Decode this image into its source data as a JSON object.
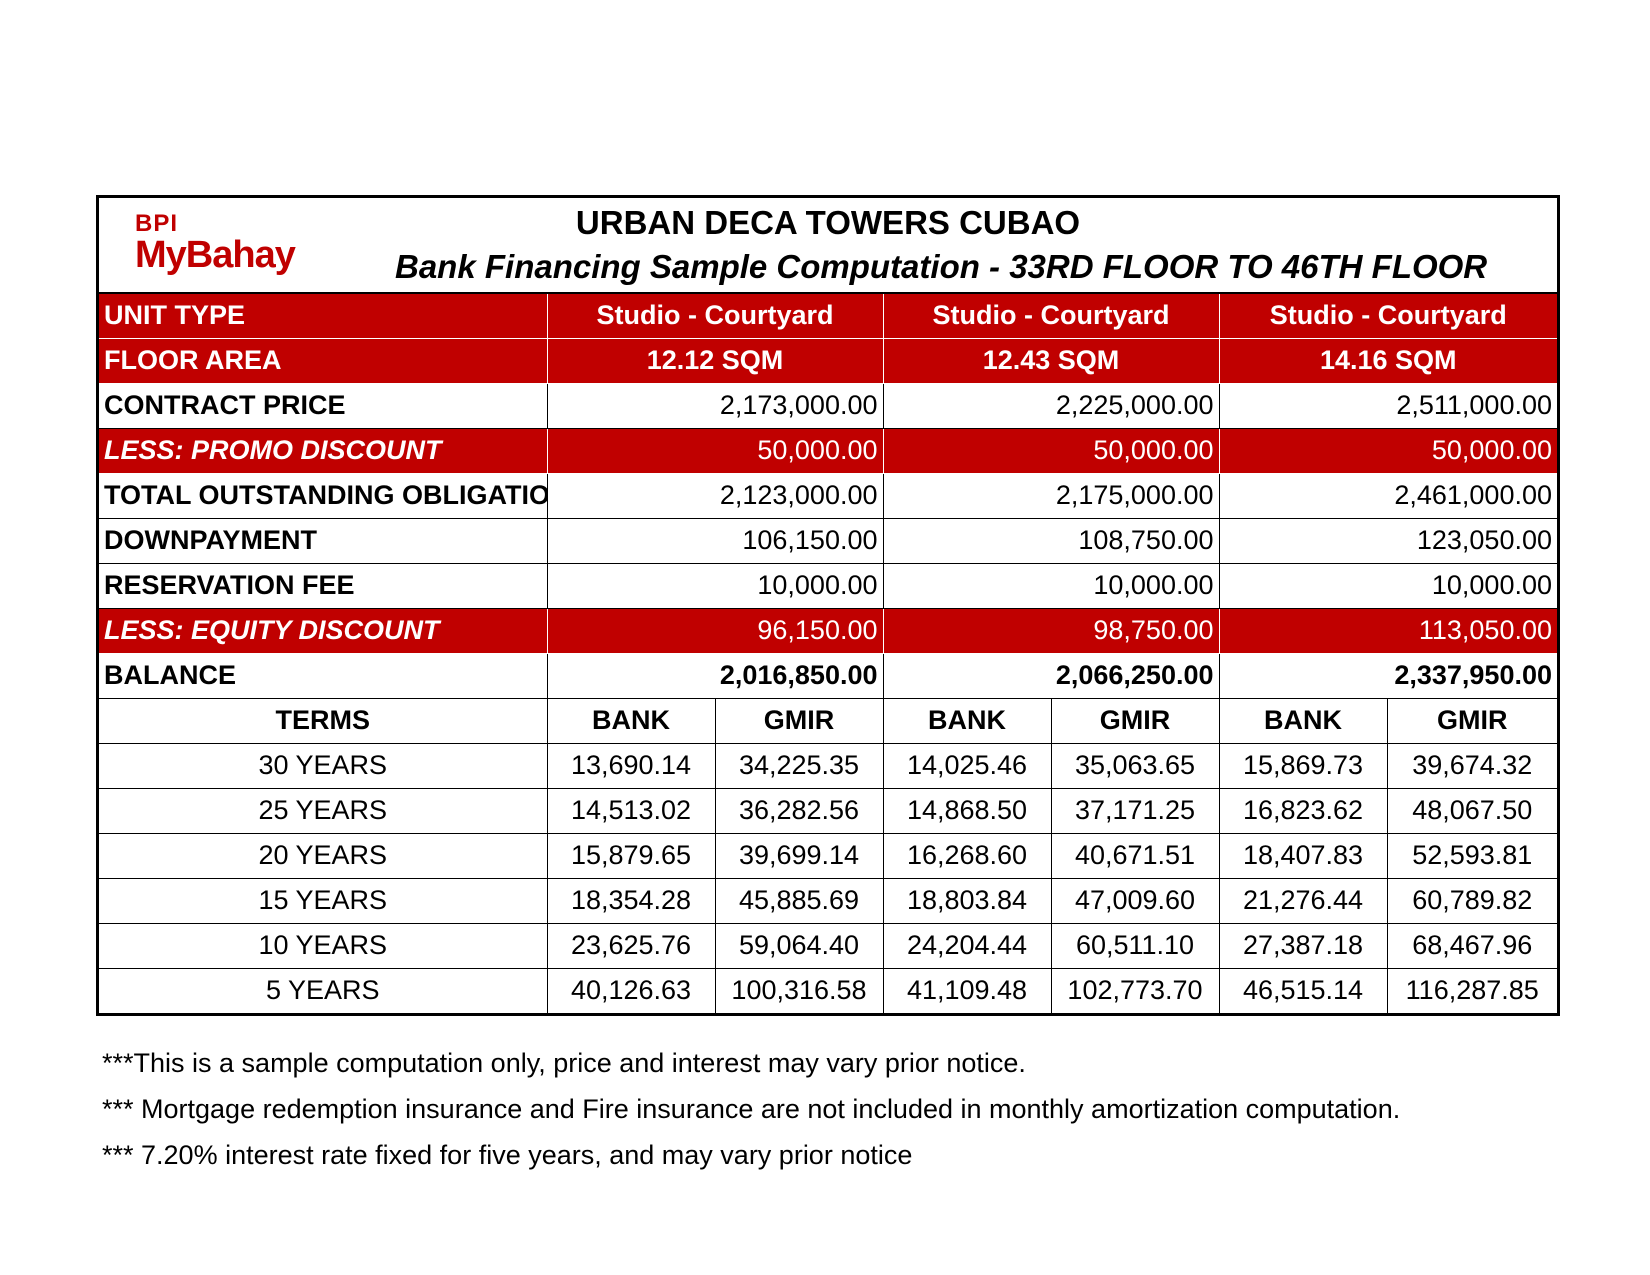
{
  "logo": {
    "line1": "BPI",
    "line2": "MyBahay"
  },
  "title": "URBAN DECA TOWERS CUBAO",
  "subtitle": "Bank Financing Sample Computation -  33RD FLOOR TO 46TH FLOOR",
  "rows": {
    "unit_type": {
      "label": "UNIT TYPE",
      "values": [
        "Studio - Courtyard",
        "Studio - Courtyard",
        "Studio - Courtyard"
      ]
    },
    "floor_area": {
      "label": "FLOOR AREA",
      "values": [
        "12.12 SQM",
        "12.43 SQM",
        "14.16 SQM"
      ]
    },
    "contract_price": {
      "label": "CONTRACT PRICE",
      "values": [
        "2,173,000.00",
        "2,225,000.00",
        "2,511,000.00"
      ]
    },
    "promo_discount": {
      "label": "LESS: PROMO DISCOUNT",
      "values": [
        "50,000.00",
        "50,000.00",
        "50,000.00"
      ]
    },
    "total_obligation": {
      "label": "TOTAL OUTSTANDING OBLIGATION",
      "values": [
        "2,123,000.00",
        "2,175,000.00",
        "2,461,000.00"
      ]
    },
    "downpayment": {
      "label": "DOWNPAYMENT",
      "values": [
        "106,150.00",
        "108,750.00",
        "123,050.00"
      ]
    },
    "reservation_fee": {
      "label": "RESERVATION FEE",
      "values": [
        "10,000.00",
        "10,000.00",
        "10,000.00"
      ]
    },
    "equity_discount": {
      "label": "LESS: EQUITY DISCOUNT",
      "values": [
        "96,150.00",
        "98,750.00",
        "113,050.00"
      ]
    },
    "balance": {
      "label": "BALANCE",
      "values": [
        "2,016,850.00",
        "2,066,250.00",
        "2,337,950.00"
      ]
    }
  },
  "terms_header": {
    "label": "TERMS",
    "cols": [
      "BANK",
      "GMIR",
      "BANK",
      "GMIR",
      "BANK",
      "GMIR"
    ]
  },
  "terms": [
    {
      "term": "30 YEARS",
      "values": [
        "13,690.14",
        "34,225.35",
        "14,025.46",
        "35,063.65",
        "15,869.73",
        "39,674.32"
      ]
    },
    {
      "term": "25 YEARS",
      "values": [
        "14,513.02",
        "36,282.56",
        "14,868.50",
        "37,171.25",
        "16,823.62",
        "48,067.50"
      ]
    },
    {
      "term": "20 YEARS",
      "values": [
        "15,879.65",
        "39,699.14",
        "16,268.60",
        "40,671.51",
        "18,407.83",
        "52,593.81"
      ]
    },
    {
      "term": "15 YEARS",
      "values": [
        "18,354.28",
        "45,885.69",
        "18,803.84",
        "47,009.60",
        "21,276.44",
        "60,789.82"
      ]
    },
    {
      "term": "10 YEARS",
      "values": [
        "23,625.76",
        "59,064.40",
        "24,204.44",
        "60,511.10",
        "27,387.18",
        "68,467.96"
      ]
    },
    {
      "term": "5 YEARS",
      "values": [
        "40,126.63",
        "100,316.58",
        "41,109.48",
        "102,773.70",
        "46,515.14",
        "116,287.85"
      ]
    }
  ],
  "notes": [
    "***This is a sample computation only, price and interest may vary prior notice.",
    "*** Mortgage redemption insurance and Fire insurance are not included in monthly amortization computation.",
    "*** 7.20% interest rate fixed for five years, and may vary prior notice"
  ],
  "colors": {
    "brand_red": "#c00000"
  }
}
